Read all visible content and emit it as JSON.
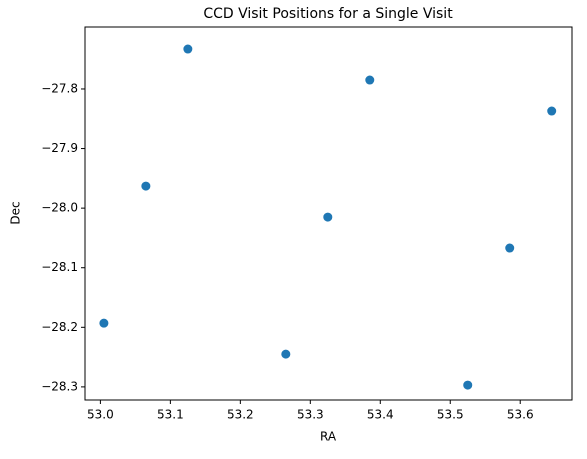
{
  "chart_data": {
    "type": "scatter",
    "title": "CCD Visit Positions for a Single Visit",
    "x_label": "RA",
    "y_label": "Dec",
    "color": "#1f77b4",
    "x": [
      53.005,
      53.065,
      53.125,
      53.265,
      53.325,
      53.385,
      53.525,
      53.585,
      53.645
    ],
    "values": [
      -28.193,
      -27.963,
      -27.733,
      -28.245,
      -28.015,
      -27.785,
      -28.297,
      -28.067,
      -27.837
    ],
    "xlim": [
      52.978,
      53.674
    ],
    "ylim": [
      -28.322,
      -27.696
    ],
    "xticks": [
      {
        "value": 53.0,
        "label": "53.0"
      },
      53.1,
      53.2,
      53.3,
      53.4,
      53.5,
      53.6
    ],
    "yticks": [
      {
        "value": -27.8,
        "label": "−27.8"
      },
      {
        "value": -27.9,
        "label": "−27.9"
      },
      {
        "value": -28.0,
        "label": "−28.0"
      },
      {
        "value": -28.1,
        "label": "−28.1"
      },
      {
        "value": -28.2,
        "label": "−28.2"
      },
      {
        "value": -28.3,
        "label": "−28.3"
      }
    ],
    "grid": false
  }
}
